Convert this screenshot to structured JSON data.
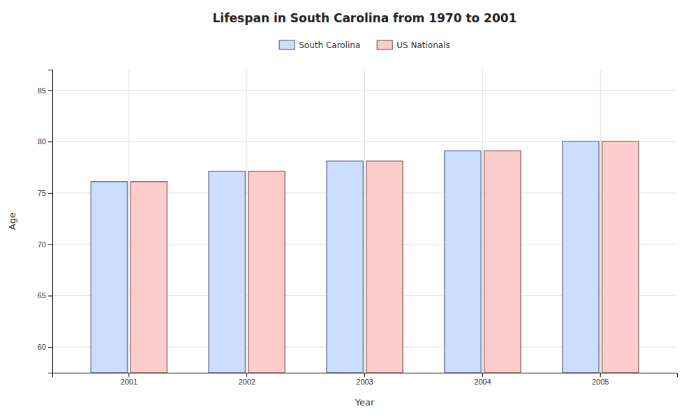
{
  "chart_data": {
    "type": "bar",
    "title": "Lifespan in South Carolina from 1970 to 2001",
    "xlabel": "Year",
    "ylabel": "Age",
    "categories": [
      "2001",
      "2002",
      "2003",
      "2004",
      "2005"
    ],
    "series": [
      {
        "name": "South Carolina",
        "color": "#ccdeff",
        "values": [
          76.1,
          77.1,
          78.1,
          79.1,
          80.0
        ]
      },
      {
        "name": "US Nationals",
        "color": "#ffcccc",
        "values": [
          76.1,
          77.1,
          78.1,
          79.1,
          80.0
        ]
      }
    ],
    "ylim": [
      57.5,
      87
    ],
    "yticks": [
      60,
      65,
      70,
      75,
      80,
      85
    ],
    "grid": true,
    "legend": "top"
  }
}
